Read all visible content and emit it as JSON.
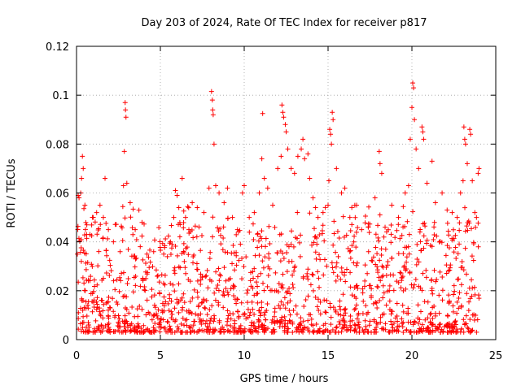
{
  "chart_data": {
    "type": "scatter",
    "title": "Day 203 of 2024, Rate Of TEC Index for receiver p817",
    "xlabel": "GPS time / hours",
    "ylabel": "ROTI / TECUs",
    "xlim": [
      0,
      25
    ],
    "ylim": [
      0,
      0.12
    ],
    "xticks": [
      0,
      5,
      10,
      15,
      20,
      25
    ],
    "xtick_labels": [
      "0",
      "5",
      "10",
      "15",
      "20",
      "25"
    ],
    "yticks": [
      0,
      0.02,
      0.04,
      0.06,
      0.08,
      0.1,
      0.12
    ],
    "ytick_labels": [
      "0",
      "0.02",
      "0.04",
      "0.06",
      "0.08",
      "0.1",
      "0.12"
    ],
    "grid": true,
    "marker": "+",
    "color": "#ff0000",
    "x_range_of_data": [
      0,
      24
    ],
    "series": [
      {
        "name": "ROTI",
        "points": [
          [
            0.05,
            0.035
          ],
          [
            0.1,
            0.059
          ],
          [
            0.15,
            0.058
          ],
          [
            0.25,
            0.06
          ],
          [
            0.3,
            0.066
          ],
          [
            0.35,
            0.075
          ],
          [
            0.4,
            0.07
          ],
          [
            0.5,
            0.055
          ],
          [
            0.6,
            0.043
          ],
          [
            0.8,
            0.043
          ],
          [
            1.0,
            0.05
          ],
          [
            1.2,
            0.052
          ],
          [
            1.4,
            0.055
          ],
          [
            1.6,
            0.05
          ],
          [
            1.7,
            0.066
          ],
          [
            1.9,
            0.045
          ],
          [
            2.2,
            0.04
          ],
          [
            2.6,
            0.036
          ],
          [
            2.8,
            0.063
          ],
          [
            2.85,
            0.077
          ],
          [
            2.9,
            0.097
          ],
          [
            2.92,
            0.094
          ],
          [
            2.95,
            0.091
          ],
          [
            3.0,
            0.064
          ],
          [
            3.2,
            0.056
          ],
          [
            3.5,
            0.045
          ],
          [
            3.8,
            0.038
          ],
          [
            4.2,
            0.035
          ],
          [
            4.6,
            0.036
          ],
          [
            5.2,
            0.035
          ],
          [
            5.6,
            0.04
          ],
          [
            5.8,
            0.05
          ],
          [
            5.9,
            0.061
          ],
          [
            6.0,
            0.059
          ],
          [
            6.1,
            0.054
          ],
          [
            6.3,
            0.066
          ],
          [
            6.5,
            0.05
          ],
          [
            6.7,
            0.045
          ],
          [
            6.9,
            0.056
          ],
          [
            7.2,
            0.054
          ],
          [
            7.6,
            0.052
          ],
          [
            7.9,
            0.062
          ],
          [
            8.05,
            0.1015
          ],
          [
            8.1,
            0.098
          ],
          [
            8.12,
            0.094
          ],
          [
            8.15,
            0.092
          ],
          [
            8.2,
            0.08
          ],
          [
            8.3,
            0.063
          ],
          [
            8.5,
            0.06
          ],
          [
            8.8,
            0.056
          ],
          [
            9.0,
            0.062
          ],
          [
            9.3,
            0.05
          ],
          [
            9.6,
            0.045
          ],
          [
            9.9,
            0.06
          ],
          [
            10.0,
            0.063
          ],
          [
            10.3,
            0.05
          ],
          [
            10.6,
            0.052
          ],
          [
            10.9,
            0.06
          ],
          [
            11.05,
            0.074
          ],
          [
            11.1,
            0.0925
          ],
          [
            11.2,
            0.066
          ],
          [
            11.4,
            0.062
          ],
          [
            11.7,
            0.055
          ],
          [
            12.0,
            0.07
          ],
          [
            12.2,
            0.075
          ],
          [
            12.25,
            0.096
          ],
          [
            12.3,
            0.093
          ],
          [
            12.35,
            0.091
          ],
          [
            12.45,
            0.088
          ],
          [
            12.5,
            0.085
          ],
          [
            12.6,
            0.078
          ],
          [
            12.8,
            0.07
          ],
          [
            13.0,
            0.068
          ],
          [
            13.2,
            0.075
          ],
          [
            13.4,
            0.078
          ],
          [
            13.5,
            0.082
          ],
          [
            13.6,
            0.074
          ],
          [
            13.8,
            0.076
          ],
          [
            13.9,
            0.066
          ],
          [
            14.1,
            0.058
          ],
          [
            14.4,
            0.05
          ],
          [
            14.7,
            0.052
          ],
          [
            15.0,
            0.055
          ],
          [
            15.05,
            0.065
          ],
          [
            15.1,
            0.086
          ],
          [
            15.15,
            0.084
          ],
          [
            15.2,
            0.08
          ],
          [
            15.25,
            0.093
          ],
          [
            15.3,
            0.09
          ],
          [
            15.5,
            0.07
          ],
          [
            15.8,
            0.06
          ],
          [
            16.0,
            0.062
          ],
          [
            16.3,
            0.05
          ],
          [
            16.7,
            0.055
          ],
          [
            17.0,
            0.045
          ],
          [
            17.4,
            0.046
          ],
          [
            17.8,
            0.058
          ],
          [
            18.05,
            0.077
          ],
          [
            18.1,
            0.072
          ],
          [
            18.2,
            0.068
          ],
          [
            18.4,
            0.046
          ],
          [
            18.8,
            0.055
          ],
          [
            19.2,
            0.05
          ],
          [
            19.6,
            0.06
          ],
          [
            19.8,
            0.063
          ],
          [
            19.9,
            0.082
          ],
          [
            20.0,
            0.095
          ],
          [
            20.05,
            0.105
          ],
          [
            20.1,
            0.103
          ],
          [
            20.15,
            0.09
          ],
          [
            20.25,
            0.078
          ],
          [
            20.4,
            0.07
          ],
          [
            20.6,
            0.087
          ],
          [
            20.65,
            0.085
          ],
          [
            20.7,
            0.082
          ],
          [
            20.9,
            0.064
          ],
          [
            21.2,
            0.073
          ],
          [
            21.4,
            0.056
          ],
          [
            21.8,
            0.06
          ],
          [
            22.1,
            0.053
          ],
          [
            22.4,
            0.052
          ],
          [
            22.7,
            0.05
          ],
          [
            22.9,
            0.06
          ],
          [
            23.05,
            0.065
          ],
          [
            23.1,
            0.087
          ],
          [
            23.15,
            0.082
          ],
          [
            23.2,
            0.08
          ],
          [
            23.3,
            0.072
          ],
          [
            23.45,
            0.086
          ],
          [
            23.5,
            0.084
          ],
          [
            23.6,
            0.065
          ],
          [
            23.75,
            0.052
          ],
          [
            23.85,
            0.05
          ],
          [
            23.95,
            0.068
          ],
          [
            24.0,
            0.07
          ]
        ]
      }
    ]
  }
}
